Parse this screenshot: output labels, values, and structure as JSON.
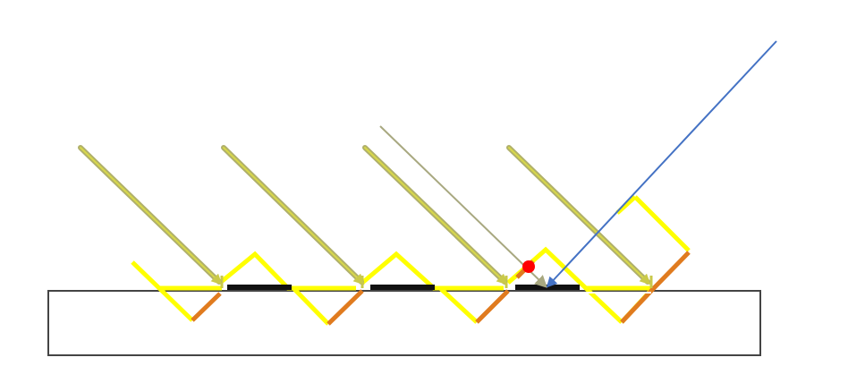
{
  "figure": {
    "colors": {
      "background": "#ffffff",
      "substrate_outline": "#444444",
      "mirror": "#ffff00",
      "mirror_edge": "#e07b1f",
      "absorber": "#111111",
      "reflected_ray": "#b0b06a",
      "reflected_ray_core": "#d8d84a",
      "thin_ray": "#a8a880",
      "incident_ray": "#4472c4",
      "marker": "#ff0000"
    },
    "elements": [
      "substrate",
      "zigzag-mirror",
      "absorber-strips",
      "reflected-rays",
      "incident-ray",
      "red-dot-marker"
    ]
  }
}
